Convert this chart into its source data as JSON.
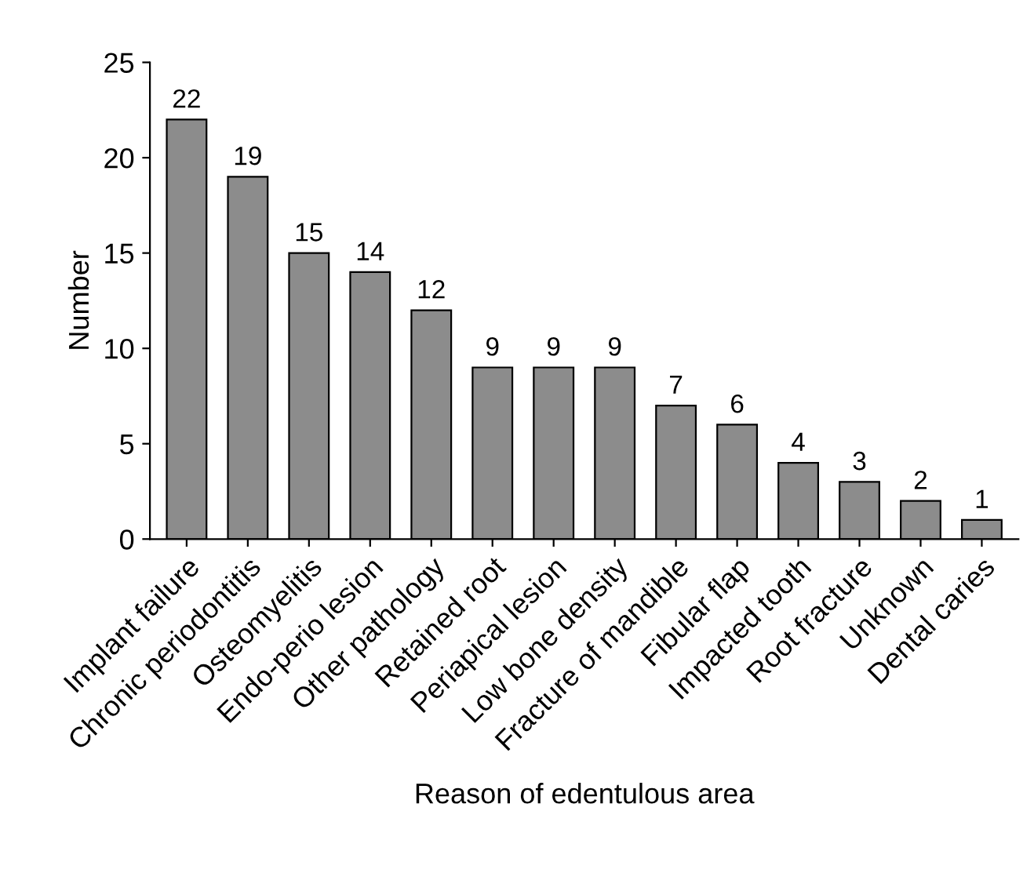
{
  "chart_data": {
    "type": "bar",
    "xlabel": "Reason of edentulous area",
    "ylabel": "Number",
    "categories": [
      "Implant failure",
      "Chronic periodontitis",
      "Osteomyelitis",
      "Endo-perio lesion",
      "Other pathology",
      "Retained root",
      "Periapical lesion",
      "Low bone density",
      "Fracture of mandible",
      "Fibular flap",
      "Impacted tooth",
      "Root fracture",
      "Unknown",
      "Dental caries"
    ],
    "values": [
      22,
      19,
      15,
      14,
      12,
      9,
      9,
      9,
      7,
      6,
      4,
      3,
      2,
      1
    ],
    "color": "#8c8c8c",
    "data_labels": true,
    "ylim": [
      0,
      25
    ],
    "yticks": [
      0,
      5,
      10,
      15,
      20,
      25
    ],
    "grid": false,
    "legend": false
  }
}
